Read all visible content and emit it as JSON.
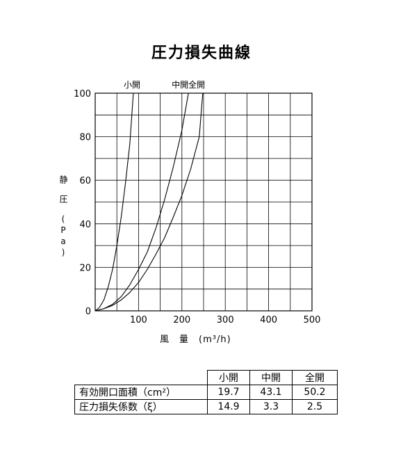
{
  "chart_data": {
    "type": "line",
    "title": "圧力損失曲線",
    "xlabel": "風　量　(m³/h)",
    "ylabel": "静　圧　(Pa)",
    "xlim": [
      0,
      500
    ],
    "ylim": [
      0,
      100
    ],
    "x_ticks": [
      "100",
      "200",
      "300",
      "400",
      "500"
    ],
    "y_ticks": [
      "0",
      "20",
      "40",
      "60",
      "80",
      "100"
    ],
    "grid": true,
    "series": [
      {
        "name": "小開",
        "x": [
          0,
          10,
          20,
          30,
          40,
          50,
          60,
          70,
          80,
          88
        ],
        "y": [
          0,
          1.6,
          5,
          11,
          19,
          30,
          43,
          59,
          77,
          100
        ]
      },
      {
        "name": "中開",
        "x": [
          0,
          20,
          40,
          60,
          80,
          100,
          120,
          140,
          160,
          180,
          200,
          215
        ],
        "y": [
          0,
          1,
          3,
          6.5,
          12,
          19,
          27,
          38,
          51,
          66,
          83,
          100
        ]
      },
      {
        "name": "全開",
        "x": [
          0,
          20,
          40,
          60,
          80,
          100,
          120,
          140,
          160,
          180,
          200,
          220,
          240,
          248
        ],
        "y": [
          0,
          1,
          2.5,
          5,
          8.5,
          13,
          19,
          26,
          33.5,
          43,
          53,
          65,
          80,
          100
        ]
      }
    ],
    "annotations": [
      {
        "text": "小開",
        "x": 85
      },
      {
        "text": "中開全開",
        "x": 215
      }
    ]
  },
  "table": {
    "headers": [
      "小開",
      "中開",
      "全開"
    ],
    "rows": [
      {
        "label": "有効開口面積（cm²）",
        "values": [
          "19.7",
          "43.1",
          "50.2"
        ]
      },
      {
        "label": "圧力損失係数（ξ）",
        "values": [
          "14.9",
          "3.3",
          "2.5"
        ]
      }
    ]
  }
}
